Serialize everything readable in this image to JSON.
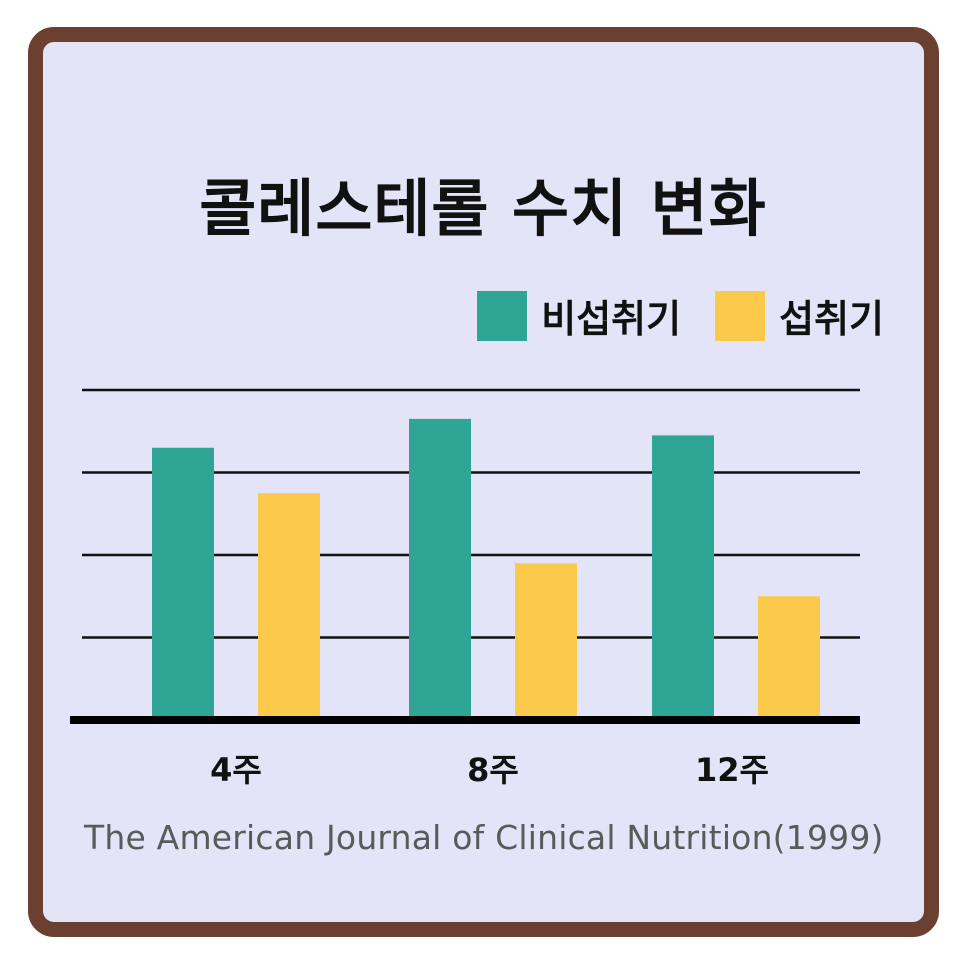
{
  "title": "콜레스테롤 수치 변화",
  "source": "The American Journal of Clinical Nutrition(1999)",
  "colors": {
    "non_intake": "#2fa595",
    "intake": "#fcca4b",
    "frame": "#6b4030",
    "background": "#e3e4f7"
  },
  "chart_data": {
    "type": "bar",
    "title": "콜레스테롤 수치 변화",
    "categories": [
      "4주",
      "8주",
      "12주"
    ],
    "series": [
      {
        "name": "비섭취기",
        "color": "#2fa595",
        "values": [
          3.3,
          3.65,
          3.45
        ]
      },
      {
        "name": "섭취기",
        "color": "#fcca4b",
        "values": [
          2.75,
          1.9,
          1.5
        ]
      }
    ],
    "ylim": [
      0,
      4
    ],
    "y_tick_labels": "none",
    "grid": true,
    "legend_position": "top-right",
    "xlabel": "",
    "ylabel": ""
  }
}
